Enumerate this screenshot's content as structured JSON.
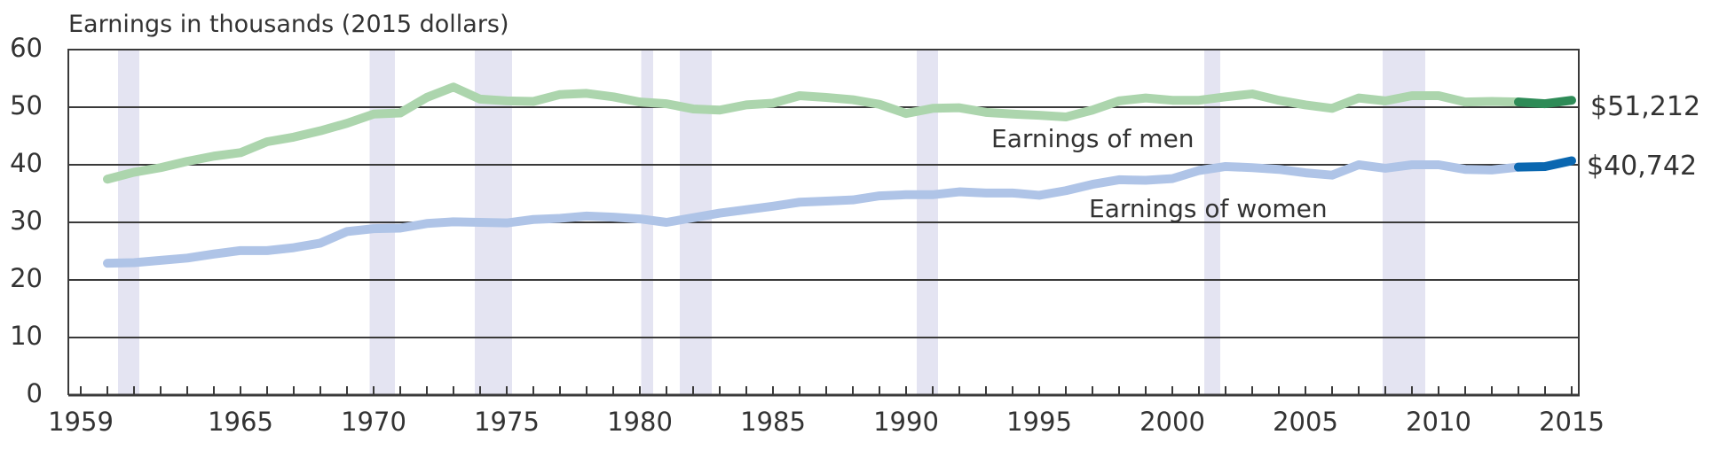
{
  "chart_data": {
    "type": "line",
    "title": "Earnings in thousands (2015 dollars)",
    "xlabel": "",
    "ylabel": "Earnings in thousands (2015 dollars)",
    "ylim": [
      0,
      60
    ],
    "xlim": [
      1959,
      2015
    ],
    "yticks": [
      0,
      10,
      20,
      30,
      40,
      50,
      60
    ],
    "xtick_labels": [
      1959,
      1965,
      1970,
      1975,
      1980,
      1985,
      1990,
      1995,
      2000,
      2005,
      2010,
      2015
    ],
    "grid": true,
    "legend": "inline labels",
    "x": [
      1960,
      1961,
      1962,
      1963,
      1964,
      1965,
      1966,
      1967,
      1968,
      1969,
      1970,
      1971,
      1972,
      1973,
      1974,
      1975,
      1976,
      1977,
      1978,
      1979,
      1980,
      1981,
      1982,
      1983,
      1984,
      1985,
      1986,
      1987,
      1988,
      1989,
      1990,
      1991,
      1992,
      1993,
      1994,
      1995,
      1996,
      1997,
      1998,
      1999,
      2000,
      2001,
      2002,
      2003,
      2004,
      2005,
      2006,
      2007,
      2008,
      2009,
      2010,
      2011,
      2012,
      2013,
      2014,
      2015
    ],
    "series": [
      {
        "name": "Earnings of men",
        "color": "#acd5ad",
        "highlight_color": "#2e8b57",
        "highlight_from": 2013,
        "end_label": "$51,212",
        "values": [
          37.5,
          38.7,
          39.5,
          40.6,
          41.5,
          42.1,
          44.0,
          44.8,
          45.9,
          47.2,
          48.8,
          49.0,
          51.7,
          53.5,
          51.4,
          51.1,
          51.0,
          52.2,
          52.4,
          51.8,
          50.9,
          50.6,
          49.7,
          49.5,
          50.4,
          50.7,
          52.0,
          51.7,
          51.3,
          50.5,
          48.9,
          49.8,
          49.9,
          49.1,
          48.8,
          48.6,
          48.3,
          49.5,
          51.1,
          51.6,
          51.2,
          51.2,
          51.8,
          52.3,
          51.2,
          50.4,
          49.8,
          51.6,
          51.1,
          52.0,
          52.0,
          50.9,
          51.0,
          50.9,
          50.6,
          51.2
        ]
      },
      {
        "name": "Earnings of women",
        "color": "#afc4e7",
        "highlight_color": "#0a67b0",
        "highlight_from": 2013,
        "end_label": "$40,742",
        "values": [
          22.9,
          23.0,
          23.4,
          23.8,
          24.5,
          25.1,
          25.1,
          25.6,
          26.4,
          28.4,
          28.9,
          29.0,
          29.8,
          30.1,
          30.0,
          29.9,
          30.5,
          30.7,
          31.1,
          30.9,
          30.6,
          30.0,
          30.8,
          31.6,
          32.2,
          32.8,
          33.5,
          33.7,
          33.9,
          34.6,
          34.8,
          34.8,
          35.3,
          35.1,
          35.1,
          34.7,
          35.5,
          36.6,
          37.4,
          37.3,
          37.6,
          39.0,
          39.7,
          39.5,
          39.2,
          38.6,
          38.2,
          40.0,
          39.4,
          40.0,
          40.0,
          39.2,
          39.1,
          39.6,
          39.7,
          40.7
        ]
      }
    ],
    "recessions": [
      [
        1960.4,
        1961.2
      ],
      [
        1969.85,
        1970.8
      ],
      [
        1973.8,
        1975.2
      ],
      [
        1980.05,
        1980.5
      ],
      [
        1981.5,
        1982.7
      ],
      [
        1990.4,
        1991.2
      ],
      [
        2001.2,
        2001.8
      ],
      [
        2007.9,
        2009.5
      ]
    ],
    "recession_color": "#e4e4f2",
    "annotations": [
      {
        "text": "Earnings of men",
        "series": "Earnings of men"
      },
      {
        "text": "Earnings of women",
        "series": "Earnings of women"
      },
      {
        "text": "$51,212",
        "series": "Earnings of men",
        "year": 2015
      },
      {
        "text": "$40,742",
        "series": "Earnings of women",
        "year": 2015
      }
    ]
  },
  "labels": {
    "title": "Earnings in thousands (2015 dollars)",
    "men": "Earnings of men",
    "women": "Earnings of women",
    "men_end": "$51,212",
    "women_end": "$40,742"
  }
}
